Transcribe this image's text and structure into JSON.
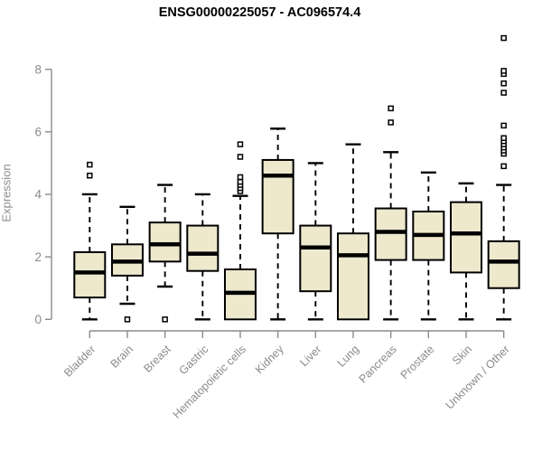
{
  "title": "ENSG00000225057 - AC096574.4",
  "colors": {
    "background": "#ffffff",
    "title_text": "#000000",
    "axis": "#8b8b8b",
    "tick_text": "#8b8b8b",
    "box_fill": "#eee8cc",
    "box_border": "#000000",
    "median_line": "#000000",
    "whisker": "#000000",
    "outlier_stroke": "#000000",
    "outlier_fill": "#ffffff"
  },
  "chart_data": {
    "type": "boxplot",
    "title": "ENSG00000225057 - AC096574.4",
    "xlabel": "",
    "ylabel": "Expression",
    "ylim": [
      0,
      9.2
    ],
    "y_ticks": [
      0,
      2,
      4,
      6,
      8
    ],
    "grid": "off",
    "legend": "none",
    "categories": [
      "Bladder",
      "Brain",
      "Breast",
      "Gastric",
      "Hematopoietic cells",
      "Kidney",
      "Liver",
      "Lung",
      "Pancreas",
      "Prostate",
      "Skin",
      "Unknown / Other"
    ],
    "boxes": [
      {
        "category": "Bladder",
        "whisker_low": 0,
        "q1": 0.7,
        "median": 1.5,
        "q3": 2.15,
        "whisker_high": 4.0,
        "outliers": [
          4.6,
          4.95
        ]
      },
      {
        "category": "Brain",
        "whisker_low": 0.5,
        "q1": 1.4,
        "median": 1.85,
        "q3": 2.4,
        "whisker_high": 3.6,
        "outliers": [
          0
        ]
      },
      {
        "category": "Breast",
        "whisker_low": 1.05,
        "q1": 1.85,
        "median": 2.4,
        "q3": 3.1,
        "whisker_high": 4.3,
        "outliers": [
          0
        ]
      },
      {
        "category": "Gastric",
        "whisker_low": 0,
        "q1": 1.55,
        "median": 2.1,
        "q3": 3.0,
        "whisker_high": 4.0,
        "outliers": []
      },
      {
        "category": "Hematopoietic cells",
        "whisker_low": 0,
        "q1": 0,
        "median": 0.85,
        "q3": 1.6,
        "whisker_high": 3.95,
        "outliers": [
          4.1,
          4.2,
          4.3,
          4.4,
          4.55,
          5.2,
          5.6
        ]
      },
      {
        "category": "Kidney",
        "whisker_low": 0,
        "q1": 2.75,
        "median": 4.6,
        "q3": 5.1,
        "whisker_high": 6.1,
        "outliers": []
      },
      {
        "category": "Liver",
        "whisker_low": 0,
        "q1": 0.9,
        "median": 2.3,
        "q3": 3.0,
        "whisker_high": 5.0,
        "outliers": []
      },
      {
        "category": "Lung",
        "whisker_low": 0,
        "q1": 0,
        "median": 2.05,
        "q3": 2.75,
        "whisker_high": 5.6,
        "outliers": []
      },
      {
        "category": "Pancreas",
        "whisker_low": 0,
        "q1": 1.9,
        "median": 2.8,
        "q3": 3.55,
        "whisker_high": 5.35,
        "outliers": [
          6.3,
          6.75
        ]
      },
      {
        "category": "Prostate",
        "whisker_low": 0,
        "q1": 1.9,
        "median": 2.7,
        "q3": 3.45,
        "whisker_high": 4.7,
        "outliers": []
      },
      {
        "category": "Skin",
        "whisker_low": 0,
        "q1": 1.5,
        "median": 2.75,
        "q3": 3.75,
        "whisker_high": 4.35,
        "outliers": []
      },
      {
        "category": "Unknown / Other",
        "whisker_low": 0,
        "q1": 1.0,
        "median": 1.85,
        "q3": 2.5,
        "whisker_high": 4.3,
        "outliers": [
          4.9,
          5.3,
          5.4,
          5.5,
          5.6,
          5.7,
          5.8,
          6.2,
          7.25,
          7.55,
          7.85,
          7.95,
          9.0
        ]
      }
    ]
  }
}
